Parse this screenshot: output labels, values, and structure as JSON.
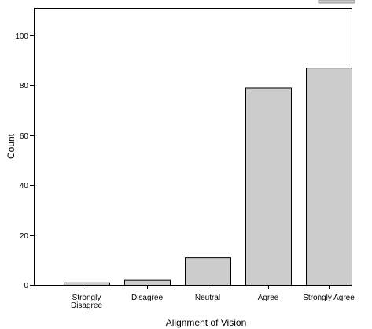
{
  "chart_data": {
    "type": "bar",
    "categories": [
      "Strongly\nDisagree",
      "Disagree",
      "Neutral",
      "Agree",
      "Strongly Agree"
    ],
    "values": [
      1,
      2,
      11,
      79,
      87
    ],
    "xlabel": "Alignment of Vision",
    "ylabel": "Count",
    "ylim": [
      0,
      111
    ],
    "yticks": [
      0,
      20,
      40,
      60,
      80,
      100
    ],
    "bar_color": "#cccccc",
    "grid": false,
    "legend": "none"
  }
}
